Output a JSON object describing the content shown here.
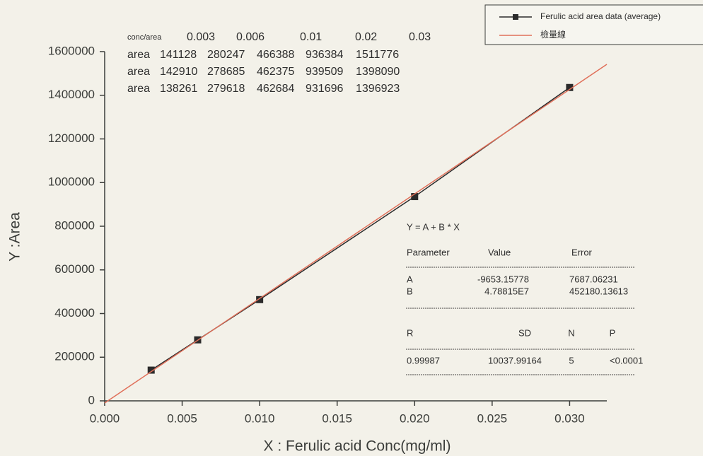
{
  "chart_data": {
    "type": "line",
    "xlabel": "X : Ferulic acid Conc(mg/ml)",
    "ylabel": "Y :Area",
    "xlim": [
      0,
      0.0324
    ],
    "xticks": [
      {
        "value": 0,
        "label": "0.000"
      },
      {
        "value": 0.005,
        "label": "0.005"
      },
      {
        "value": 0.01,
        "label": "0.010"
      },
      {
        "value": 0.015,
        "label": "0.015"
      },
      {
        "value": 0.02,
        "label": "0.020"
      },
      {
        "value": 0.025,
        "label": "0.025"
      },
      {
        "value": 0.03,
        "label": "0.030"
      }
    ],
    "ylim": [
      0,
      1600000
    ],
    "yticks": [
      0,
      200000,
      400000,
      600000,
      800000,
      1000000,
      1200000,
      1400000,
      1600000
    ],
    "legend": "upper right",
    "series": [
      {
        "name": "Ferulic acid area data (average)",
        "color": "#2b2b2b",
        "marker": "square",
        "x": [
          0.003,
          0.006,
          0.01,
          0.02,
          0.03
        ],
        "values": [
          140766,
          279517,
          463816,
          935863,
          1435596
        ]
      },
      {
        "name": "檢量線",
        "color": "#e0705a",
        "x": [
          0,
          0.0324
        ],
        "values": [
          -9653,
          1541707
        ]
      }
    ],
    "data_table": {
      "header": [
        "conc/area",
        "0.003",
        "0.006",
        "0.01",
        "0.02",
        "0.03"
      ],
      "rows": [
        [
          "area",
          "141128",
          "280247",
          "466388",
          "936384",
          "1511776"
        ],
        [
          "area",
          "142910",
          "278685",
          "462375",
          "939509",
          "1398090"
        ],
        [
          "area",
          "138261",
          "279618",
          "462684",
          "931696",
          "1396923"
        ]
      ]
    },
    "fit_table": {
      "equation": "Y = A + B * X",
      "header": [
        "Parameter",
        "Value",
        "Error"
      ],
      "rows": [
        [
          "A",
          "-9653.15778",
          "7687.06231"
        ],
        [
          "B",
          "4.78815E7",
          "452180.13613"
        ]
      ],
      "stats_header": [
        "R",
        "SD",
        "N",
        "P"
      ],
      "stats_row": [
        "0.99987",
        "10037.99164",
        "5",
        "<0.0001"
      ]
    }
  }
}
